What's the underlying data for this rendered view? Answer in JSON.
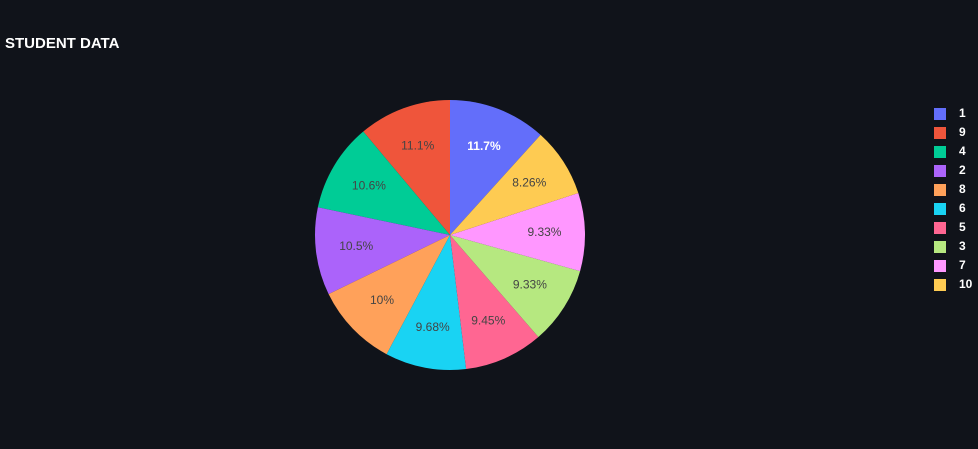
{
  "chart_data": {
    "type": "pie",
    "title": "STUDENT DATA",
    "categories": [
      "1",
      "9",
      "4",
      "2",
      "8",
      "6",
      "5",
      "3",
      "7",
      "10"
    ],
    "values": [
      11.7,
      11.1,
      10.6,
      10.5,
      10,
      9.68,
      9.45,
      9.33,
      9.33,
      8.26
    ],
    "value_labels": [
      "11.7%",
      "11.1%",
      "10.6%",
      "10.5%",
      "10%",
      "9.68%",
      "9.45%",
      "9.33%",
      "9.33%",
      "8.26%"
    ],
    "colors": [
      "#636efa",
      "#EF553B",
      "#00cc96",
      "#ab63fa",
      "#FFA15A",
      "#19d3f3",
      "#FF6692",
      "#B6E880",
      "#FF97FF",
      "#FECB52"
    ],
    "legend": "right"
  }
}
